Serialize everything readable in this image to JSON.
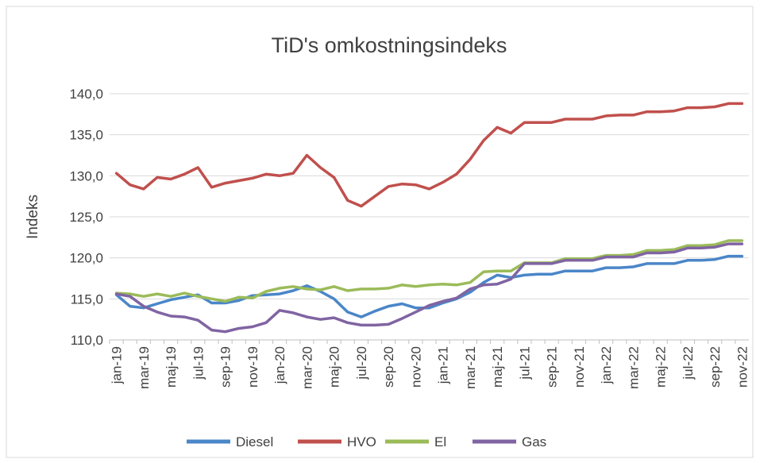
{
  "chart_data": {
    "type": "line",
    "title": "TiD's omkostningsindeks",
    "y_label": "Indeks",
    "categories": [
      "jan-19",
      null,
      "mar-19",
      null,
      "maj-19",
      null,
      "jul-19",
      null,
      "sep-19",
      null,
      "nov-19",
      null,
      "jan-20",
      null,
      "mar-20",
      null,
      "maj-20",
      null,
      "jul-20",
      null,
      "sep-20",
      null,
      "nov-20",
      null,
      "jan-21",
      null,
      "mar-21",
      null,
      "maj-21",
      null,
      "jul-21",
      null,
      "sep-21",
      null,
      "nov-21",
      null,
      "jan-22",
      null,
      "mar-22",
      null,
      "maj-22",
      null,
      "jul-22",
      null,
      "sep-22",
      null,
      "nov-22"
    ],
    "series": [
      {
        "name": "Diesel",
        "color": "#4a86c8",
        "values": [
          115.5,
          114.1,
          113.9,
          114.4,
          114.9,
          115.2,
          115.5,
          114.5,
          114.5,
          114.8,
          115.4,
          115.5,
          115.6,
          116.0,
          116.6,
          115.9,
          115.0,
          113.4,
          112.8,
          113.5,
          114.1,
          114.4,
          113.9,
          113.9,
          114.5,
          115.0,
          115.8,
          117.0,
          117.9,
          117.6,
          117.9,
          118.0,
          118.0,
          118.4,
          118.4,
          118.4,
          118.8,
          118.8,
          118.9,
          119.3,
          119.3,
          119.3,
          119.7,
          119.7,
          119.8,
          120.2,
          120.2
        ]
      },
      {
        "name": "HVO",
        "color": "#c0504d",
        "values": [
          130.3,
          128.9,
          128.4,
          129.8,
          129.6,
          130.2,
          131.0,
          128.6,
          129.1,
          129.4,
          129.7,
          130.2,
          130.0,
          130.3,
          132.5,
          131.0,
          129.8,
          127.0,
          126.3,
          127.5,
          128.7,
          129.0,
          128.9,
          128.4,
          129.2,
          130.2,
          132.0,
          134.3,
          135.9,
          135.2,
          136.5,
          136.5,
          136.5,
          136.9,
          136.9,
          136.9,
          137.3,
          137.4,
          137.4,
          137.8,
          137.8,
          137.9,
          138.3,
          138.3,
          138.4,
          138.8,
          138.8
        ]
      },
      {
        "name": "El",
        "color": "#9bbb59",
        "values": [
          115.7,
          115.6,
          115.3,
          115.6,
          115.3,
          115.7,
          115.3,
          115.0,
          114.7,
          115.2,
          115.1,
          115.9,
          116.3,
          116.5,
          116.2,
          116.1,
          116.5,
          116.0,
          116.2,
          116.2,
          116.3,
          116.7,
          116.5,
          116.7,
          116.8,
          116.7,
          117.0,
          118.3,
          118.4,
          118.4,
          119.4,
          119.4,
          119.4,
          119.9,
          119.9,
          119.9,
          120.3,
          120.3,
          120.4,
          120.9,
          120.9,
          121.0,
          121.5,
          121.5,
          121.6,
          122.1,
          122.1
        ]
      },
      {
        "name": "Gas",
        "color": "#8064a2",
        "values": [
          115.6,
          115.3,
          114.1,
          113.4,
          112.9,
          112.8,
          112.4,
          111.2,
          111.0,
          111.4,
          111.6,
          112.1,
          113.6,
          113.3,
          112.8,
          112.5,
          112.7,
          112.1,
          111.8,
          111.8,
          111.9,
          112.6,
          113.4,
          114.2,
          114.7,
          115.1,
          116.2,
          116.7,
          116.8,
          117.4,
          119.3,
          119.3,
          119.3,
          119.7,
          119.7,
          119.7,
          120.1,
          120.1,
          120.1,
          120.6,
          120.6,
          120.7,
          121.2,
          121.2,
          121.3,
          121.7,
          121.7
        ]
      }
    ],
    "ylim": [
      110,
      140
    ],
    "yticks": [
      {
        "value": 110,
        "label": "110,0"
      },
      {
        "value": 115,
        "label": "115,0"
      },
      {
        "value": 120,
        "label": "120,0"
      },
      {
        "value": 125,
        "label": "125,0"
      },
      {
        "value": 130,
        "label": "130,0"
      },
      {
        "value": 135,
        "label": "135,0"
      },
      {
        "value": 140,
        "label": "140,0"
      }
    ],
    "grid": true,
    "legend": "bottom"
  }
}
